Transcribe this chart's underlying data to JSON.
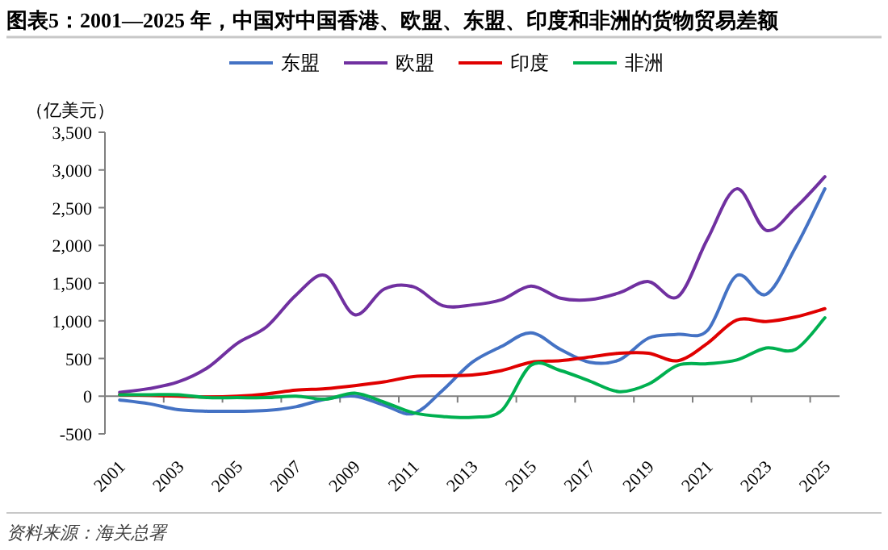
{
  "chart_data": {
    "type": "line",
    "title": "图表5：2001—2025 年，中国对中国香港、欧盟、东盟、印度和非洲的货物贸易差额",
    "ylabel": "（亿美元）",
    "categories": [
      "2001",
      null,
      "2003",
      null,
      "2005",
      null,
      "2007",
      null,
      "2009",
      null,
      "2011",
      null,
      "2013",
      null,
      "2015",
      null,
      "2017",
      null,
      "2019",
      null,
      "2021",
      null,
      "2023",
      null,
      "2025"
    ],
    "series": [
      {
        "name": "东盟",
        "color": "#4472c4",
        "values": [
          -50,
          -100,
          -180,
          -200,
          -200,
          -190,
          -140,
          -40,
          0,
          -120,
          -230,
          80,
          450,
          660,
          840,
          620,
          450,
          480,
          770,
          820,
          870,
          1600,
          1350,
          1970,
          2750
        ]
      },
      {
        "name": "欧盟",
        "color": "#7030a0",
        "values": [
          50,
          100,
          190,
          380,
          700,
          920,
          1340,
          1600,
          1080,
          1420,
          1450,
          1200,
          1210,
          1280,
          1460,
          1300,
          1280,
          1370,
          1520,
          1320,
          2080,
          2750,
          2200,
          2500,
          2910
        ]
      },
      {
        "name": "印度",
        "color": "#e00000",
        "values": [
          20,
          10,
          0,
          -10,
          0,
          30,
          80,
          100,
          140,
          190,
          260,
          270,
          280,
          340,
          450,
          470,
          520,
          570,
          570,
          470,
          700,
          1010,
          990,
          1050,
          1160
        ]
      },
      {
        "name": "非洲",
        "color": "#00b050",
        "values": [
          20,
          20,
          20,
          -20,
          -20,
          -20,
          0,
          -40,
          40,
          -80,
          -220,
          -270,
          -280,
          -190,
          410,
          340,
          200,
          60,
          160,
          410,
          430,
          480,
          640,
          620,
          1040
        ]
      }
    ],
    "ylim": [
      -500,
      3500
    ],
    "yticks": [
      {
        "value": -500,
        "label": "-500"
      },
      0,
      {
        "value": 500,
        "label": "500"
      },
      {
        "value": 1000,
        "label": "1,000"
      },
      {
        "value": 1500,
        "label": "1,500"
      },
      {
        "value": 2000,
        "label": "2,000"
      },
      {
        "value": 2500,
        "label": "2,500"
      },
      {
        "value": 3000,
        "label": "3,000"
      },
      {
        "value": 3500,
        "label": "3,500"
      }
    ],
    "legend": "top",
    "line_style": "solid",
    "marker": "none",
    "annotations": [
      "资料来源：海关总署"
    ]
  }
}
